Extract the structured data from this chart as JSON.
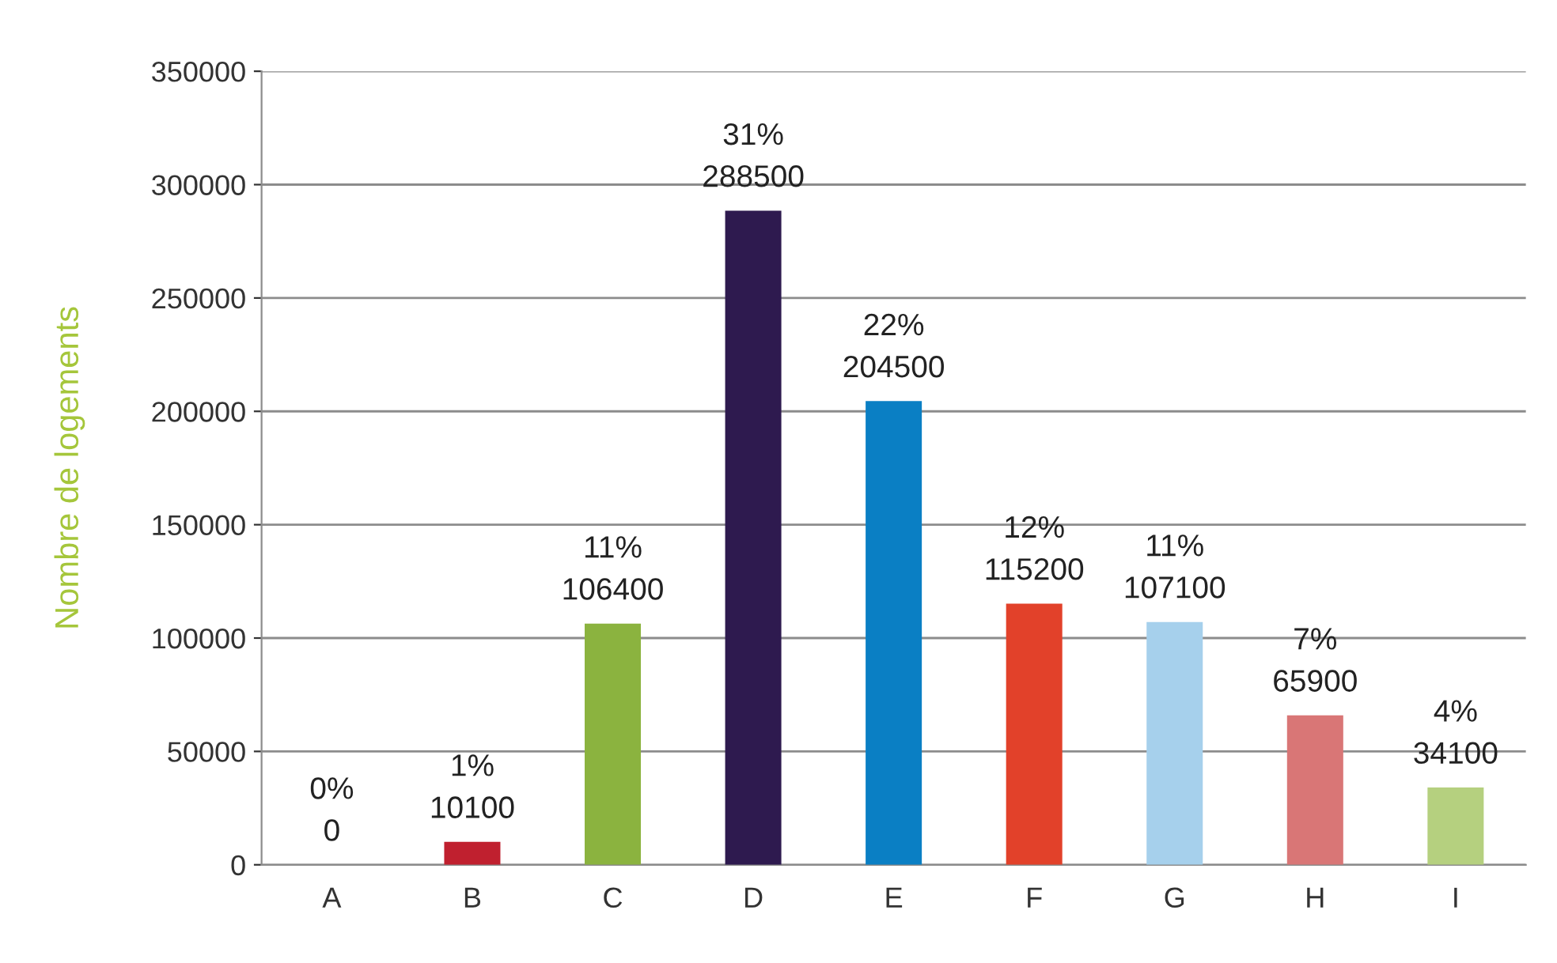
{
  "chart_data": {
    "type": "bar",
    "ylabel": "Nombre de logements",
    "categories": [
      "A",
      "B",
      "C",
      "D",
      "E",
      "F",
      "G",
      "H",
      "I"
    ],
    "values": [
      0,
      10100,
      106400,
      288500,
      204500,
      115200,
      107100,
      65900,
      34100
    ],
    "colors": [
      "#808080",
      "#c0202f",
      "#8bb33f",
      "#2e1a4f",
      "#0a7fc4",
      "#e2412a",
      "#a6d0ec",
      "#d97676",
      "#b5d07f"
    ],
    "ylim": [
      0,
      350000
    ],
    "yticks": [
      0,
      50000,
      100000,
      150000,
      200000,
      250000,
      300000,
      350000
    ],
    "grid": "y",
    "value_labels": [
      "0%\n0",
      "1%\n10100",
      "11%\n106400",
      "31%\n288500",
      "22%\n204500",
      "12%\n115200",
      "11%\n107100",
      "7%\n65900",
      "4%\n34100"
    ]
  }
}
